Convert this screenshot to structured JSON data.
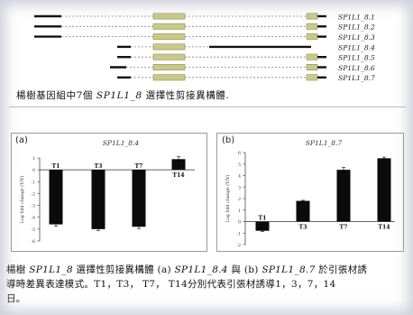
{
  "gene_structure": {
    "isoform_labels": [
      "SP1L1_8.1",
      "SP1L1_8.2",
      "SP1L1_8.3",
      "SP1L1_8.4",
      "SP1L1_8.5",
      "SP1L1_8.6",
      "SP1L1_8.7"
    ],
    "colors": {
      "exon": "#c9c98a",
      "exon_border": "#8f8f5a",
      "line": "#111111",
      "dash": "#7f7fb0"
    }
  },
  "caption_top": "楊樹基因組中7個 SP1L1_8 選擇性剪接異構體.",
  "caption_top_parts": {
    "pre": "楊樹基因組中7個 ",
    "gene": "SP1L1_8",
    "post": " 選擇性剪接異構體."
  },
  "charts": [
    {
      "panel": "(a)",
      "title": "SP1L1_8.4",
      "ylabel": "Log fold change (T/V)",
      "chart_data": {
        "type": "bar",
        "categories": [
          "T1",
          "T3",
          "T7",
          "T14"
        ],
        "values": [
          -4.6,
          -5.0,
          -4.8,
          0.9
        ],
        "errors": [
          0.15,
          0.12,
          0.15,
          0.2
        ],
        "ylim": [
          -6,
          1
        ],
        "yticks": [
          -6,
          -5,
          -4,
          -3,
          -2,
          -1,
          0,
          1
        ],
        "title": "SP1L1_8.4",
        "xlabel": "",
        "ylabel": "Log fold change (T/V)"
      }
    },
    {
      "panel": "(b)",
      "title": "SP1L1_8.7",
      "ylabel": "Log fold change (T/V)",
      "chart_data": {
        "type": "bar",
        "categories": [
          "T1",
          "T3",
          "T7",
          "T14"
        ],
        "values": [
          -0.8,
          1.8,
          4.5,
          5.5
        ],
        "errors": [
          0.05,
          0.05,
          0.2,
          0.1
        ],
        "ylim": [
          -2,
          6
        ],
        "yticks": [
          -2,
          -1,
          0,
          1,
          2,
          3,
          4,
          5,
          6
        ],
        "title": "SP1L1_8.7",
        "xlabel": "",
        "ylabel": "Log fold change (T/V)"
      }
    }
  ],
  "caption_bottom": {
    "line1_a": "楊樹 ",
    "line1_gene": "SP1L1_8",
    "line1_b": " 選擇性剪接異構體 (a) ",
    "line1_iso1": "SP1L1_8.4",
    "line1_c": " 與 (b) ",
    "line1_iso2": "SP1L1_8.7",
    "line1_d": " 於引張材誘",
    "line2": "導時差異表達模式。T1，T3，  T7，  T14分別代表引張材誘導1，3，7，14",
    "line3": "日。"
  }
}
